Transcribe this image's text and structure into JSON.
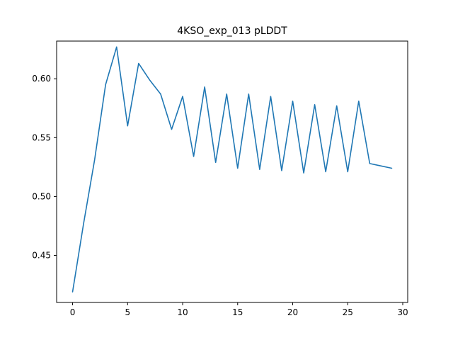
{
  "chart_data": {
    "type": "line",
    "title": "4KSO_exp_013 pLDDT",
    "xlabel": "",
    "ylabel": "",
    "xlim": [
      -1.45,
      30.45
    ],
    "ylim": [
      0.41,
      0.632
    ],
    "grid": false,
    "legend": "none",
    "x_ticks": [
      0,
      5,
      10,
      15,
      20,
      25,
      30
    ],
    "x_tick_labels": [
      "0",
      "5",
      "10",
      "15",
      "20",
      "25",
      "30"
    ],
    "y_ticks": [
      0.45,
      0.5,
      0.55,
      0.6
    ],
    "y_tick_labels": [
      "0.45",
      "0.50",
      "0.55",
      "0.60"
    ],
    "series": [
      {
        "color": "#1f77b4",
        "x": [
          0,
          1,
          2,
          3,
          4,
          5,
          6,
          7,
          8,
          9,
          10,
          11,
          12,
          13,
          14,
          15,
          16,
          17,
          18,
          19,
          20,
          21,
          22,
          23,
          24,
          25,
          26,
          27,
          28,
          29
        ],
        "values": [
          0.419,
          0.477,
          0.531,
          0.595,
          0.627,
          0.56,
          0.613,
          0.599,
          0.587,
          0.557,
          0.585,
          0.534,
          0.593,
          0.529,
          0.587,
          0.524,
          0.587,
          0.523,
          0.585,
          0.522,
          0.581,
          0.52,
          0.578,
          0.521,
          0.577,
          0.521,
          0.581,
          0.528,
          0.526,
          0.524
        ]
      }
    ]
  }
}
